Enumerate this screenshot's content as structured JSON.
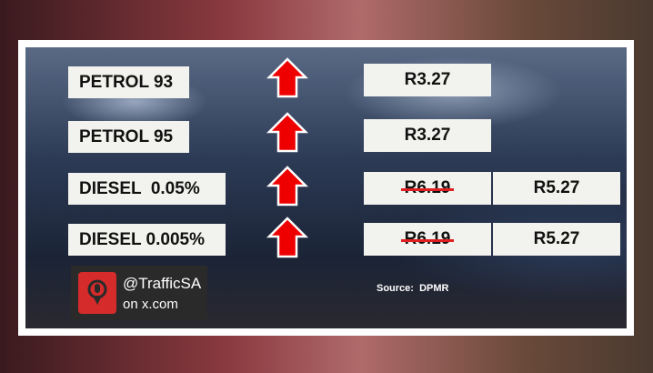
{
  "rows": [
    {
      "label": "PETROL 93",
      "price": "R3.27"
    },
    {
      "label": "PETROL 95",
      "price": "R3.27"
    },
    {
      "label": "DIESEL  0.05%",
      "old_price": "R6.19",
      "price": "R5.27"
    },
    {
      "label": "DIESEL 0.005%",
      "old_price": "R6.19",
      "price": "R5.27"
    }
  ],
  "badge": {
    "handle": "@TrafficSA",
    "site": "on x.com"
  },
  "source": "Source:  DPMR"
}
